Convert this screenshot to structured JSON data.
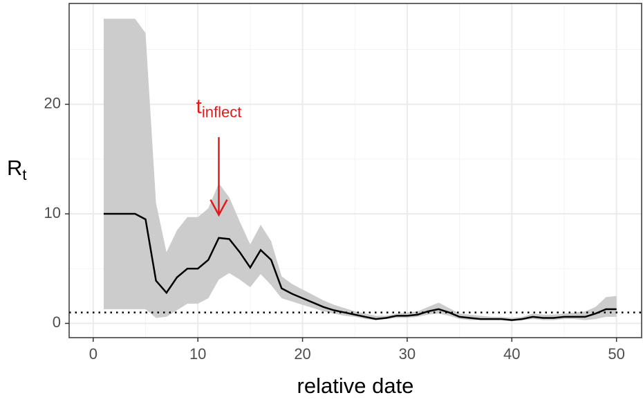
{
  "chart_data": {
    "type": "line",
    "xlabel": "relative date",
    "ylabel": "R",
    "ylabel_sub": "t",
    "annotation": {
      "text": "t",
      "sub": "inflect",
      "x": 12,
      "y": 19.7,
      "arrow_from": 17,
      "arrow_to": 9.9,
      "color": "#e31a1c"
    },
    "x": [
      1,
      2,
      3,
      4,
      5,
      6,
      7,
      8,
      9,
      10,
      11,
      12,
      13,
      14,
      15,
      16,
      17,
      18,
      19,
      20,
      21,
      22,
      23,
      24,
      25,
      26,
      27,
      28,
      29,
      30,
      31,
      32,
      33,
      34,
      35,
      36,
      37,
      38,
      39,
      40,
      41,
      42,
      43,
      44,
      45,
      46,
      47,
      48,
      49,
      50
    ],
    "series": [
      {
        "color": "#000000",
        "values": [
          10,
          10,
          10,
          10,
          9.5,
          3.9,
          2.8,
          4.2,
          5.0,
          5.0,
          5.8,
          7.8,
          7.7,
          6.5,
          5.1,
          6.7,
          5.8,
          3.2,
          2.7,
          2.3,
          1.9,
          1.5,
          1.2,
          1.0,
          0.8,
          0.6,
          0.4,
          0.5,
          0.7,
          0.7,
          0.8,
          1.1,
          1.3,
          1.0,
          0.6,
          0.5,
          0.4,
          0.4,
          0.4,
          0.3,
          0.4,
          0.6,
          0.5,
          0.5,
          0.6,
          0.6,
          0.6,
          0.9,
          1.3,
          1.3
        ],
        "lower": [
          1.3,
          1.3,
          1.3,
          1.3,
          1.3,
          0.5,
          0.6,
          1.2,
          1.8,
          1.8,
          2.3,
          4.0,
          4.6,
          4.0,
          3.3,
          4.5,
          3.5,
          2.3,
          2.0,
          1.7,
          1.4,
          1.1,
          0.9,
          0.7,
          0.6,
          0.4,
          0.3,
          0.4,
          0.5,
          0.5,
          0.6,
          0.8,
          0.9,
          0.7,
          0.4,
          0.3,
          0.3,
          0.3,
          0.3,
          0.2,
          0.3,
          0.4,
          0.3,
          0.3,
          0.4,
          0.4,
          0.3,
          0.4,
          0.6,
          0.6
        ],
        "upper": [
          27.8,
          27.8,
          27.8,
          27.8,
          26.5,
          11,
          6.5,
          8.5,
          9.7,
          9.7,
          10.5,
          12.8,
          11.5,
          9.3,
          7.2,
          9.0,
          7.5,
          4.3,
          3.6,
          3.1,
          2.6,
          2.1,
          1.7,
          1.4,
          1.1,
          0.9,
          0.7,
          0.7,
          0.9,
          1.0,
          1.1,
          1.5,
          1.9,
          1.4,
          0.9,
          0.8,
          0.7,
          0.6,
          0.6,
          0.5,
          0.6,
          0.9,
          0.8,
          0.8,
          0.9,
          1.0,
          1.1,
          1.5,
          2.4,
          2.5
        ],
        "band_color": "#cccccc"
      }
    ],
    "hline": 1,
    "xlim": [
      -2.3,
      52.4
    ],
    "xticks": [
      0,
      10,
      20,
      30,
      40,
      50
    ],
    "x_minor_ticks": [
      5,
      15,
      25,
      35,
      45
    ],
    "ylim": [
      -1.3,
      29.2
    ],
    "yticks": [
      0,
      10,
      20
    ],
    "y_minor_ticks": [
      5,
      15,
      25
    ],
    "grid": true
  }
}
